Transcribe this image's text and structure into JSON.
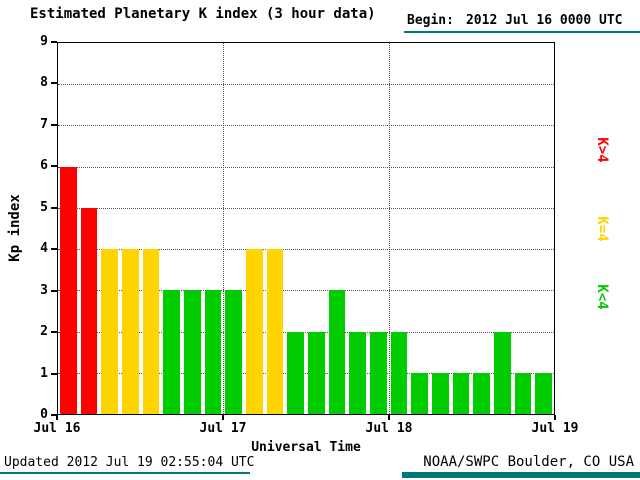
{
  "title": "Estimated Planetary K index (3 hour data)",
  "begin_label": "Begin:",
  "begin_value": "2012 Jul 16 0000 UTC",
  "footer": {
    "updated": "Updated 2012 Jul 19 02:55:04 UTC",
    "source": "NOAA/SWPC Boulder, CO USA"
  },
  "colors": {
    "high": "#ff0000",
    "medium": "#ffd400",
    "low": "#00cc00",
    "accent_teal": "#007878",
    "grid": "#555555",
    "frame": "#000000"
  },
  "legend": [
    {
      "label": "K>4",
      "color": "#ff0000"
    },
    {
      "label": "K=4",
      "color": "#ffd400"
    },
    {
      "label": "K<4",
      "color": "#00cc00"
    }
  ],
  "chart_data": {
    "type": "bar",
    "title": "Estimated Planetary K index (3 hour data)",
    "xlabel": "Universal Time",
    "ylabel": "Kp index",
    "ylim": [
      0,
      9
    ],
    "yticks": [
      0,
      1,
      2,
      3,
      4,
      5,
      6,
      7,
      8,
      9
    ],
    "x_day_labels": [
      "Jul 16",
      "Jul 17",
      "Jul 18",
      "Jul 19"
    ],
    "bars_per_day": 8,
    "values": [
      6,
      5,
      4,
      4,
      4,
      3,
      3,
      3,
      3,
      4,
      4,
      2,
      2,
      3,
      2,
      2,
      2,
      1,
      1,
      1,
      1,
      2,
      1,
      1
    ],
    "color_rule": "red if K>4, yellow if K=4, green if K<4",
    "grid": true,
    "legend_position": "right"
  }
}
